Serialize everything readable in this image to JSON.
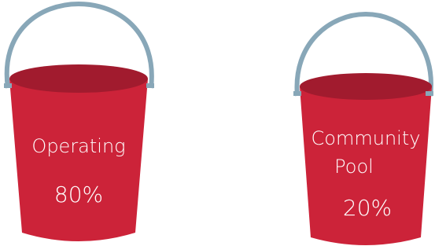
{
  "buckets": [
    {
      "label_lines": [
        "Operating"
      ],
      "share": "80%"
    },
    {
      "label_lines": [
        "Community",
        "Pool"
      ],
      "share": "20%"
    }
  ]
}
